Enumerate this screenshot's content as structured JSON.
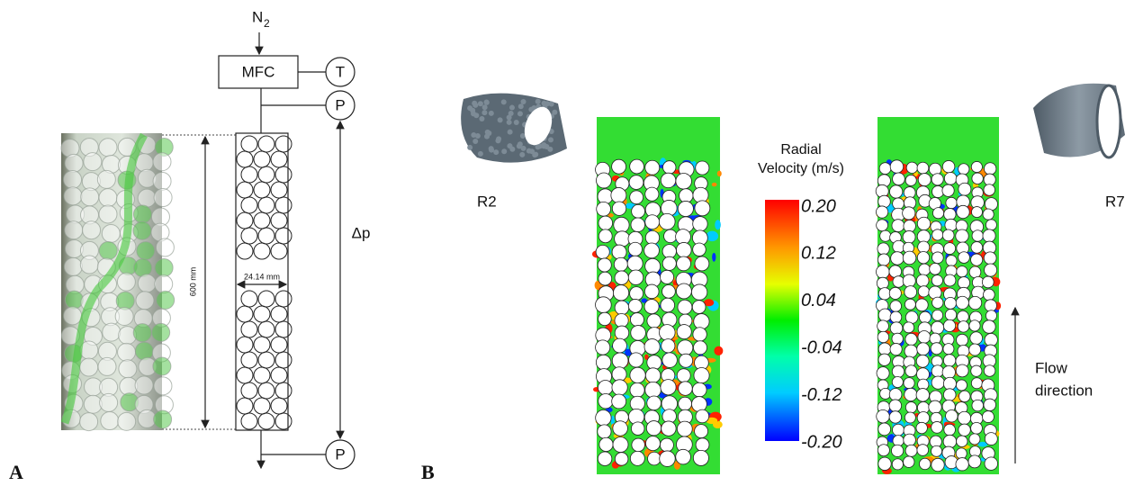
{
  "panel_a": {
    "label": "A",
    "gas": "N",
    "gas_subscript": "2",
    "mfc": "MFC",
    "temperature": "T",
    "pressure_top": "P",
    "pressure_bottom": "P",
    "pressure_drop": "Δp",
    "height": "600 mm",
    "diameter": "24.14 mm"
  },
  "panel_b": {
    "label": "B",
    "left_model": "R2",
    "right_model": "R7",
    "colorbar": {
      "title": [
        "Radial",
        "Velocity (m/s)"
      ],
      "ticks": [
        "0.20",
        "0.12",
        "0.04",
        "-0.04",
        "-0.12",
        "-0.20"
      ]
    },
    "flow": [
      "Flow",
      "direction"
    ]
  }
}
